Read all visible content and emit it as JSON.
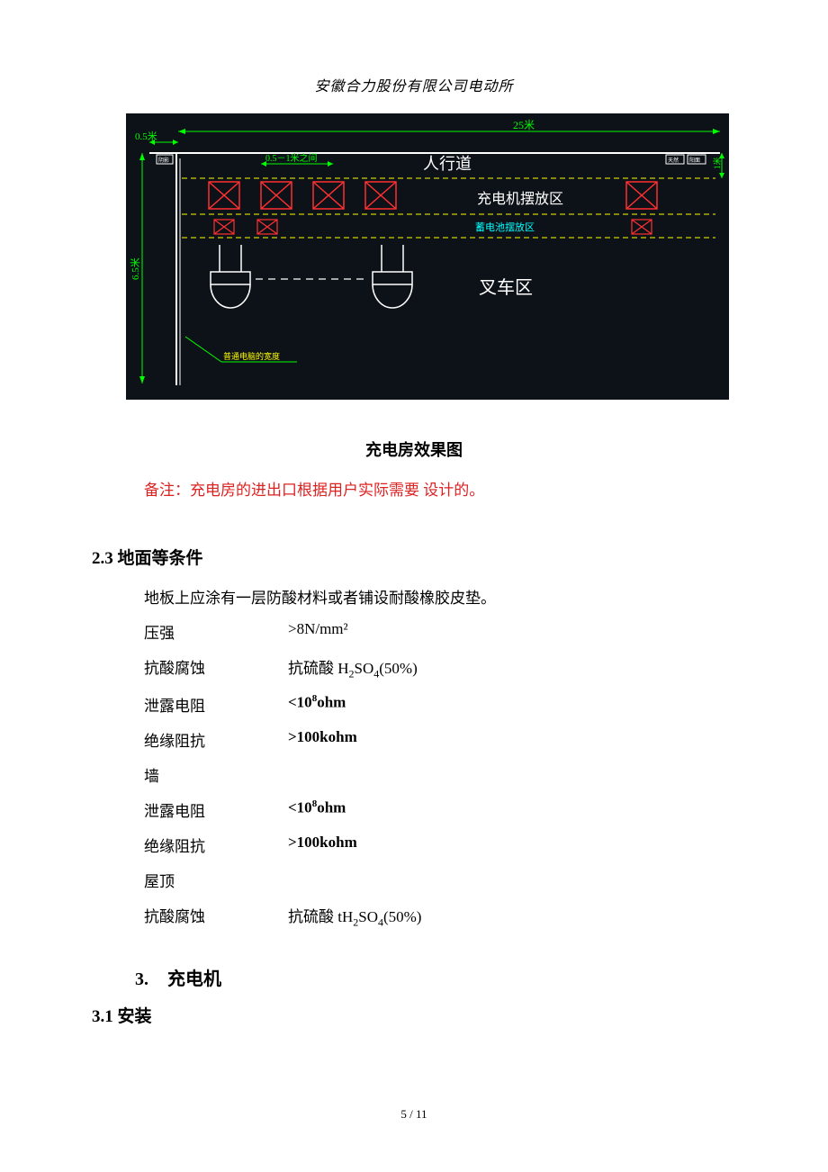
{
  "header": {
    "text": "安徽合力股份有限公司电动所"
  },
  "diagram": {
    "background": "#0d1219",
    "dims_color": "#00ff00",
    "line_color_white": "#ffffff",
    "line_color_green": "#00ff00",
    "line_color_yellow": "#ffff00",
    "line_color_cyan": "#00ffff",
    "box_color": "#ff0000",
    "top_dim_left": "0.5米",
    "top_dim_right": "25米",
    "inner_dim": "0.5－1米之间",
    "left_dim": "6.5米",
    "right_dim": "1米",
    "walkway_label": "人行道",
    "charger_area_label": "充电机摆放区",
    "battery_area_label": "蓄电池摆放区",
    "forklift_area_label": "叉车区",
    "bottom_note": "普通电脑的宽度",
    "left_glyph": "阴影",
    "right_glyph_a": "天然",
    "right_glyph_b": "阳面"
  },
  "caption": "充电房效果图",
  "note": {
    "prefix": "备注：",
    "body": "充电房的进出口根据用户实际需要 设计的。"
  },
  "section23": {
    "title": "2.3 地面等条件",
    "intro": "地板上应涂有一层防酸材料或者铺设耐酸橡胶皮垫。",
    "rows": [
      {
        "label": "压强",
        "value_html": ">8N/mm²"
      },
      {
        "label": "抗酸腐蚀",
        "value_html": "抗硫酸 H<sub>2</sub>SO<sub>4</sub>(50%)"
      },
      {
        "label": "泄露电阻",
        "value_html": "<10<sup>8</sup>ohm",
        "bold": true
      },
      {
        "label": "绝缘阻抗",
        "value_html": ">100kohm",
        "bold": true
      },
      {
        "label": "墙",
        "value_html": ""
      },
      {
        "label": "泄露电阻",
        "value_html": "<10<sup>8</sup>ohm",
        "bold": true
      },
      {
        "label": "绝缘阻抗",
        "value_html": ">100kohm",
        "bold": true
      },
      {
        "label": "屋顶",
        "value_html": ""
      },
      {
        "label": "抗酸腐蚀",
        "value_html": "抗硫酸 tH<sub>2</sub>SO<sub>4</sub>(50%)"
      }
    ]
  },
  "section3": {
    "num": "3.",
    "title": "充电机"
  },
  "section31": {
    "title": "3.1 安装"
  },
  "footer": {
    "text": "5 / 11"
  }
}
